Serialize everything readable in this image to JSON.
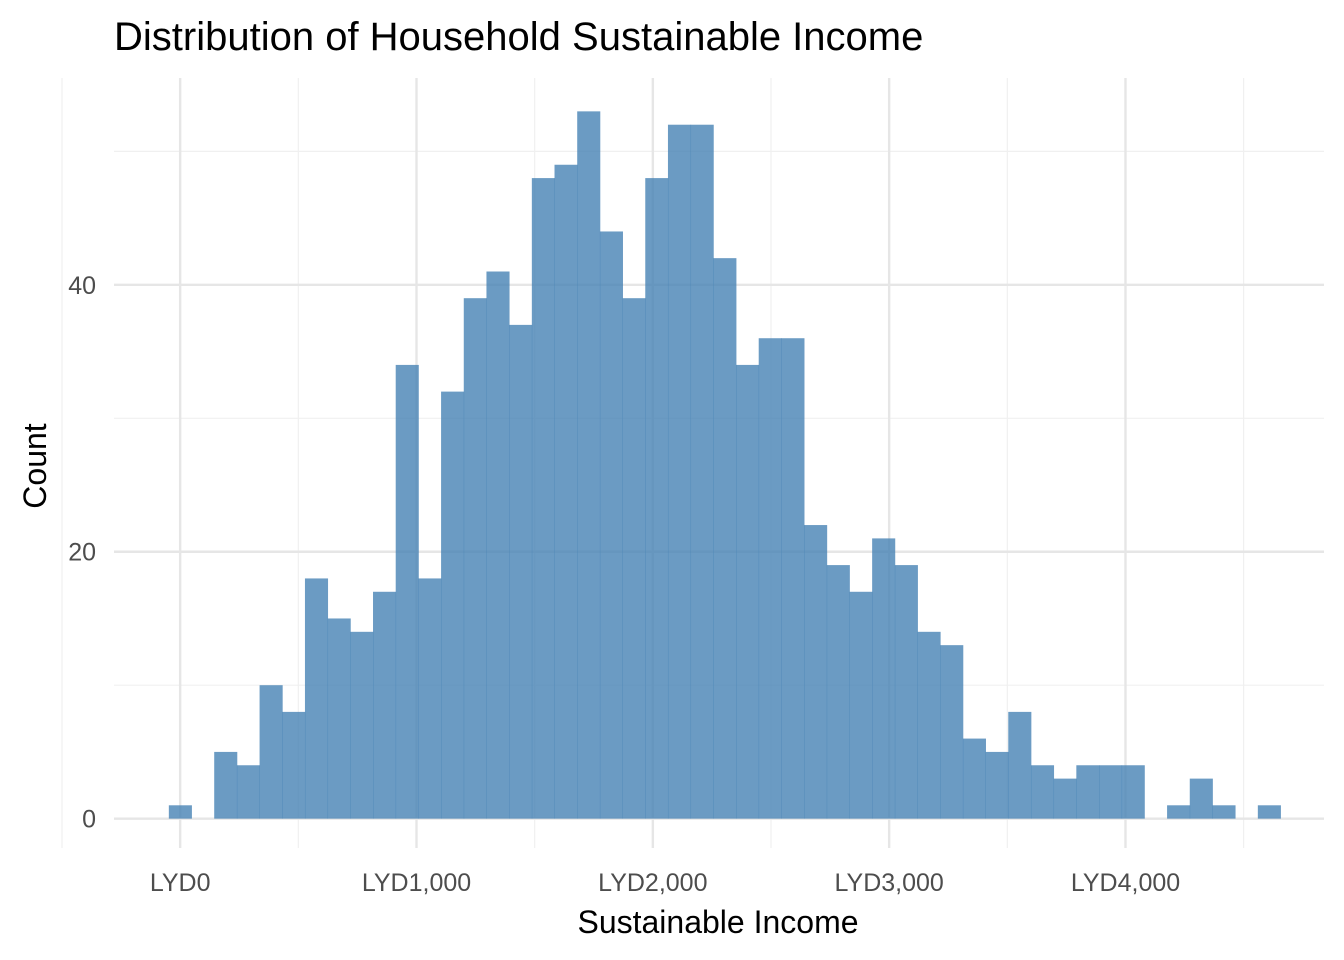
{
  "chart_data": {
    "type": "bar",
    "title": "Distribution of Household Sustainable Income",
    "xlabel": "Sustainable Income",
    "ylabel": "Count",
    "x_ticks": [
      {
        "value": 0,
        "label": "LYD0"
      },
      {
        "value": 1000,
        "label": "LYD1,000"
      },
      {
        "value": 2000,
        "label": "LYD2,000"
      },
      {
        "value": 3000,
        "label": "LYD3,000"
      },
      {
        "value": 4000,
        "label": "LYD4,000"
      }
    ],
    "y_ticks": [
      {
        "value": 0,
        "label": "0"
      },
      {
        "value": 20,
        "label": "20"
      },
      {
        "value": 40,
        "label": "40"
      }
    ],
    "xlim": [
      -280,
      4840
    ],
    "ylim": [
      -2.2,
      55.5
    ],
    "bin_width": 96,
    "bin_start": -48,
    "counts": [
      1,
      0,
      5,
      4,
      10,
      8,
      18,
      15,
      14,
      17,
      34,
      18,
      32,
      39,
      41,
      37,
      48,
      49,
      53,
      44,
      39,
      48,
      52,
      52,
      42,
      34,
      36,
      36,
      22,
      19,
      17,
      21,
      19,
      14,
      13,
      6,
      5,
      8,
      4,
      3,
      4,
      4,
      4,
      0,
      1,
      3,
      1,
      0,
      1
    ],
    "grid": true,
    "bar_color": "#4682b4"
  }
}
